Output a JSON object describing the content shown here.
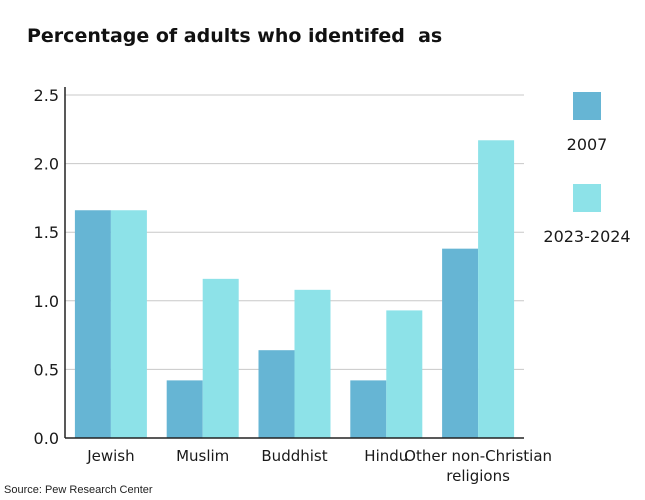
{
  "chart_data": {
    "type": "bar",
    "title": "Percentage of adults who identifed  as",
    "categories": [
      "Jewish",
      "Muslim",
      "Buddhist",
      "Hindu",
      "Other non-Christian religions"
    ],
    "category_lines": [
      [
        "Jewish"
      ],
      [
        "Muslim"
      ],
      [
        "Buddhist"
      ],
      [
        "Hindu"
      ],
      [
        "Other non-Christian",
        "religions"
      ]
    ],
    "series": [
      {
        "name": "2007",
        "color": "#66b5d4",
        "values": [
          1.66,
          0.42,
          0.64,
          0.42,
          1.38
        ]
      },
      {
        "name": "2023-2024",
        "color": "#8de2e8",
        "values": [
          1.66,
          1.16,
          1.08,
          0.93,
          2.17
        ]
      }
    ],
    "y_ticks": [
      {
        "value": 0.0,
        "label": "0.0"
      },
      {
        "value": 0.5,
        "label": "0.5"
      },
      {
        "value": 1.0,
        "label": "1.0"
      },
      {
        "value": 1.5,
        "label": "1.5"
      },
      {
        "value": 2.0,
        "label": "2.0"
      },
      {
        "value": 2.5,
        "label": "2.5"
      }
    ],
    "ylim": [
      0,
      2.5
    ],
    "grid": true,
    "legend": "right",
    "xlabel": "",
    "ylabel": ""
  },
  "source": "Source: Pew Research Center"
}
